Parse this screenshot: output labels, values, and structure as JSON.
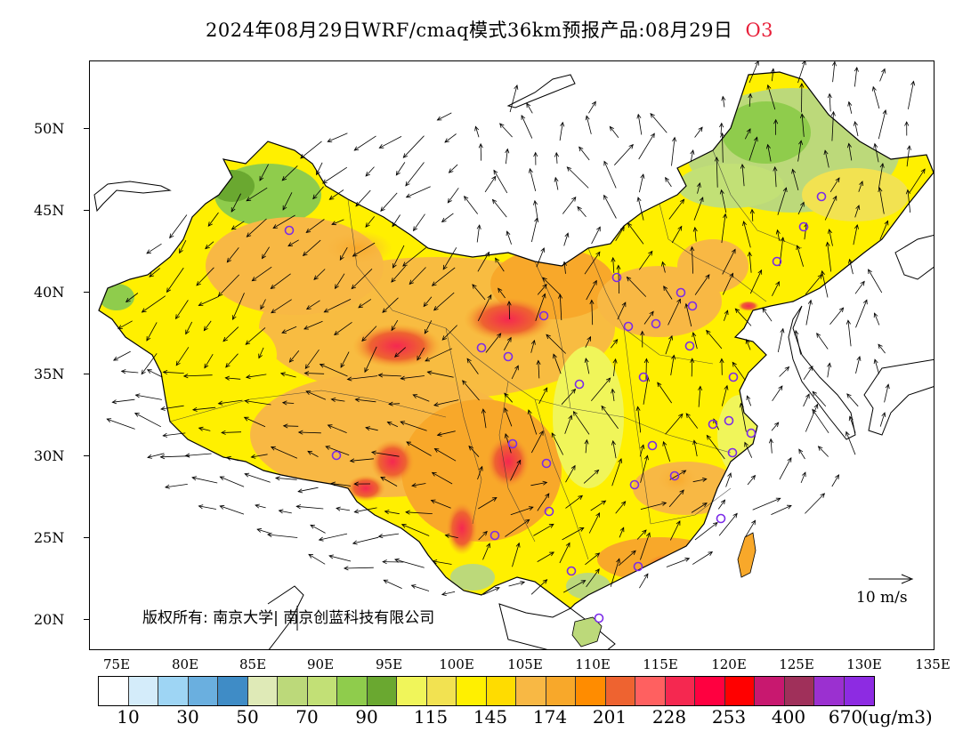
{
  "title": {
    "text": "2024年08月29日WRF/cmaq模式36km预报产品:08月29日",
    "variable": "O3"
  },
  "axes": {
    "lat_labels": [
      "50N",
      "45N",
      "40N",
      "35N",
      "30N",
      "25N",
      "20N"
    ],
    "lon_labels": [
      "75E",
      "80E",
      "85E",
      "90E",
      "95E",
      "100E",
      "105E",
      "110E",
      "115E",
      "120E",
      "125E",
      "130E",
      "135E"
    ]
  },
  "copyright": "版权所有: 南京大学| 南京创蓝科技有限公司",
  "wind_scale": "10 m/s",
  "colorbar": {
    "colors": [
      "#ffffff",
      "#d4ecfa",
      "#9ed5f4",
      "#6aafdf",
      "#3f8cc6",
      "#dfeab7",
      "#bcd97a",
      "#c2e076",
      "#8fcc4c",
      "#6aa830",
      "#f0f55a",
      "#f2e251",
      "#fff000",
      "#ffdc00",
      "#f8b844",
      "#f8a82a",
      "#ff8c00",
      "#ee6330",
      "#ff6060",
      "#f52850",
      "#ff0040",
      "#ff0000",
      "#c8186f",
      "#a0305a",
      "#9b30d0",
      "#8d2be2"
    ],
    "labels": [
      "10",
      "30",
      "50",
      "70",
      "90",
      "115",
      "145",
      "174",
      "201",
      "228",
      "253",
      "400",
      "670"
    ],
    "unit": "(ug/m3)"
  },
  "stations": {
    "count": 32
  }
}
